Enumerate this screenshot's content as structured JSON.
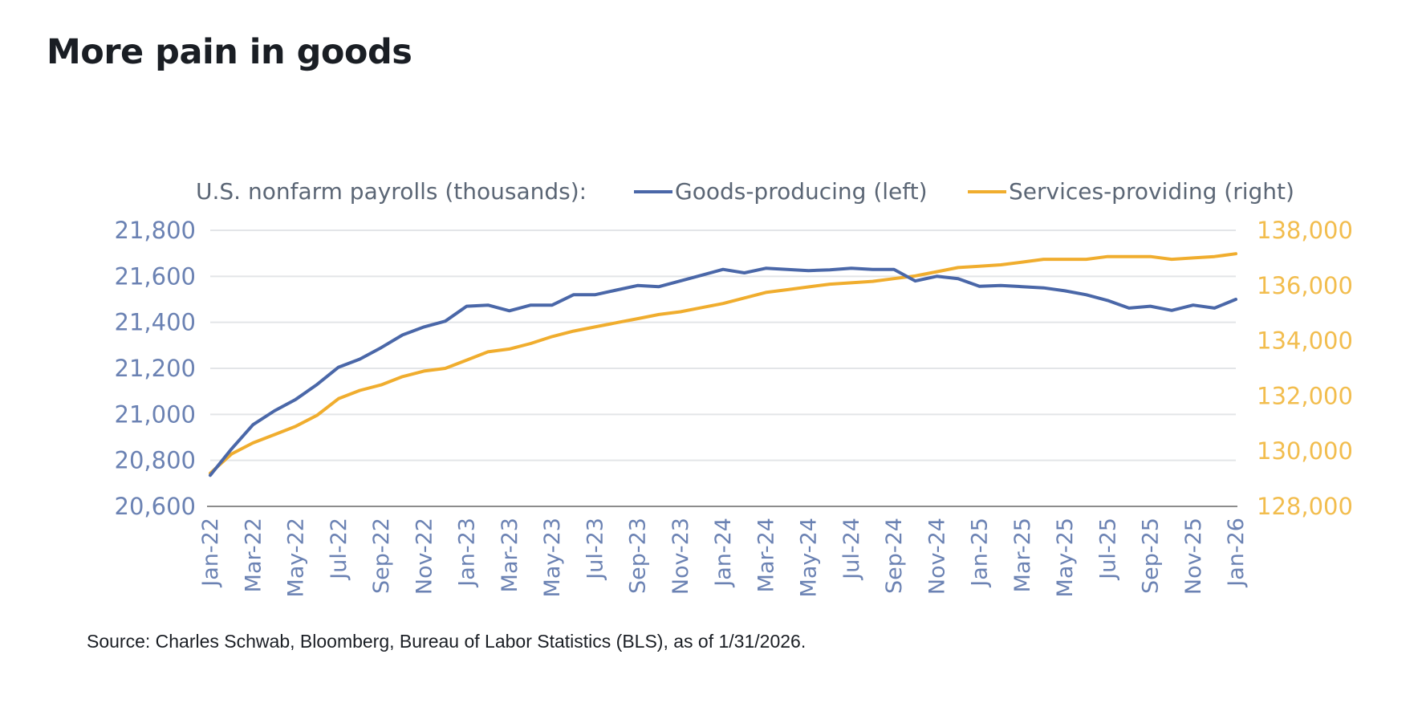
{
  "page": {
    "title": "More pain in goods",
    "source": "Source: Charles Schwab, Bloomberg, Bureau of Labor Statistics (BLS), as of 1/31/2026."
  },
  "chart_data": {
    "type": "line",
    "legend_title": "U.S. nonfarm payrolls (thousands):",
    "legend_placement": "top",
    "grid": true,
    "x": [
      "Jan-22",
      "Feb-22",
      "Mar-22",
      "Apr-22",
      "May-22",
      "Jun-22",
      "Jul-22",
      "Aug-22",
      "Sep-22",
      "Oct-22",
      "Nov-22",
      "Dec-22",
      "Jan-23",
      "Feb-23",
      "Mar-23",
      "Apr-23",
      "May-23",
      "Jun-23",
      "Jul-23",
      "Aug-23",
      "Sep-23",
      "Oct-23",
      "Nov-23",
      "Dec-23",
      "Jan-24",
      "Feb-24",
      "Mar-24",
      "Apr-24",
      "May-24",
      "Jun-24",
      "Jul-24",
      "Aug-24",
      "Sep-24",
      "Oct-24",
      "Nov-24",
      "Dec-24",
      "Jan-25",
      "Feb-25",
      "Mar-25",
      "Apr-25",
      "May-25",
      "Jun-25",
      "Jul-25",
      "Aug-25",
      "Sep-25",
      "Oct-25",
      "Nov-25",
      "Dec-25",
      "Jan-26"
    ],
    "x_tick_labels": [
      "Jan-22",
      "Mar-22",
      "May-22",
      "Jul-22",
      "Sep-22",
      "Nov-22",
      "Jan-23",
      "Mar-23",
      "May-23",
      "Jul-23",
      "Sep-23",
      "Nov-23",
      "Jan-24",
      "Mar-24",
      "May-24",
      "Jul-24",
      "Sep-24",
      "Nov-24",
      "Jan-25",
      "Mar-25",
      "May-25",
      "Jul-25",
      "Sep-25",
      "Nov-25",
      "Jan-26"
    ],
    "y_left": {
      "ylim": [
        20600,
        21800
      ],
      "ticks": [
        "20,600",
        "20,800",
        "21,000",
        "21,200",
        "21,400",
        "21,600",
        "21,800"
      ],
      "tick_values": [
        20600,
        20800,
        21000,
        21200,
        21400,
        21600,
        21800
      ]
    },
    "y_right": {
      "ylim": [
        128000,
        138000
      ],
      "ticks": [
        "128,000",
        "130,000",
        "132,000",
        "134,000",
        "136,000",
        "138,000"
      ],
      "tick_values": [
        128000,
        130000,
        132000,
        134000,
        136000,
        138000
      ]
    },
    "series": [
      {
        "name": "Goods-producing (left)",
        "axis": "left",
        "color": "#4a67a8",
        "values": [
          20735,
          20850,
          20955,
          21015,
          21065,
          21130,
          21205,
          21240,
          21290,
          21345,
          21380,
          21405,
          21470,
          21475,
          21450,
          21475,
          21475,
          21520,
          21520,
          21540,
          21560,
          21555,
          21580,
          21605,
          21630,
          21615,
          21635,
          21630,
          21625,
          21628,
          21635,
          21630,
          21630,
          21580,
          21600,
          21590,
          21557,
          21560,
          21555,
          21550,
          21537,
          21520,
          21495,
          21462,
          21470,
          21452,
          21475,
          21462,
          21500
        ]
      },
      {
        "name": "Services-providing (right)",
        "axis": "right",
        "color": "#f0ad2e",
        "values": [
          129200,
          129900,
          130300,
          130600,
          130900,
          131300,
          131900,
          132200,
          132400,
          132700,
          132900,
          133000,
          133300,
          133600,
          133700,
          133900,
          134150,
          134350,
          134500,
          134650,
          134800,
          134950,
          135050,
          135200,
          135350,
          135550,
          135750,
          135850,
          135950,
          136050,
          136100,
          136150,
          136250,
          136350,
          136500,
          136650,
          136700,
          136750,
          136850,
          136950,
          136950,
          136950,
          137050,
          137050,
          137050,
          136950,
          137000,
          137050,
          137150
        ]
      }
    ]
  }
}
